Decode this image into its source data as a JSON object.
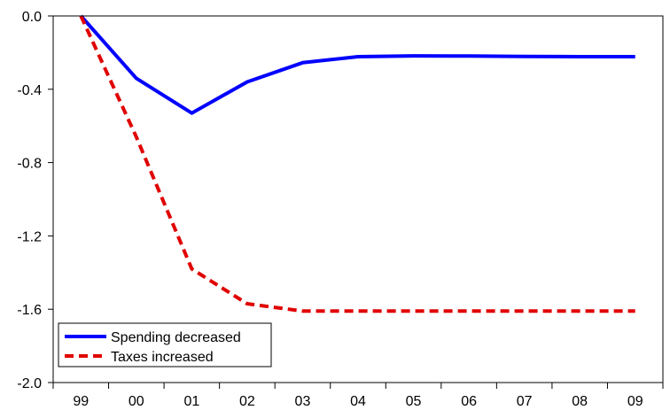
{
  "chart_data": {
    "type": "line",
    "title": "",
    "xlabel": "",
    "ylabel": "",
    "categories": [
      "99",
      "00",
      "01",
      "02",
      "03",
      "04",
      "05",
      "06",
      "07",
      "08",
      "09"
    ],
    "ylim": [
      -2.0,
      0.0
    ],
    "yticks": [
      0.0,
      -0.4,
      -0.8,
      -1.2,
      -1.6,
      -2.0
    ],
    "ytick_labels": [
      "0.0",
      "-0.4",
      "-0.8",
      "-1.2",
      "-1.6",
      "-2.0"
    ],
    "grid": false,
    "legend_position": "bottom-left",
    "series": [
      {
        "name": "Spending decreased",
        "color": "#0000ff",
        "style": "solid",
        "values": [
          0.0,
          -0.34,
          -0.53,
          -0.36,
          -0.255,
          -0.222,
          -0.218,
          -0.219,
          -0.221,
          -0.222,
          -0.222
        ]
      },
      {
        "name": "Taxes increased",
        "color": "#e00000",
        "style": "dashed",
        "values": [
          0.0,
          -0.66,
          -1.38,
          -1.57,
          -1.61,
          -1.61,
          -1.61,
          -1.61,
          -1.61,
          -1.61,
          -1.61
        ]
      }
    ]
  }
}
